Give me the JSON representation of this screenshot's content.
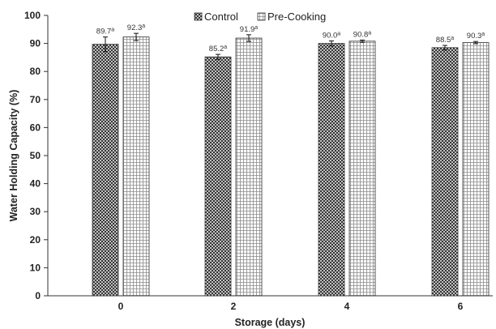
{
  "chart_data": {
    "type": "bar",
    "title": "",
    "xlabel": "Storage (days)",
    "ylabel": "Water Holding Capacity (%)",
    "ylim": [
      0,
      100
    ],
    "yticks": [
      "0",
      "10",
      "20",
      "30",
      "40",
      "50",
      "60",
      "70",
      "80",
      "90",
      "100"
    ],
    "categories": [
      "0",
      "2",
      "4",
      "6"
    ],
    "legend_position": "top-center",
    "grid": false,
    "series": [
      {
        "name": "Control",
        "pattern": "crosshatch-dark",
        "color": "#333333",
        "values": [
          89.7,
          85.2,
          90.0,
          88.5
        ],
        "errors": [
          2.6,
          0.9,
          0.9,
          0.8
        ],
        "labels": [
          "89.7",
          "85.2",
          "90.0",
          "88.5"
        ],
        "superscripts": [
          "a",
          "a",
          "a",
          "a"
        ]
      },
      {
        "name": "Pre-Cooking",
        "pattern": "grid-light",
        "color": "#888888",
        "values": [
          92.3,
          91.9,
          90.8,
          90.3
        ],
        "errors": [
          1.3,
          1.2,
          0.4,
          0.4
        ],
        "labels": [
          "92.3",
          "91.9",
          "90.8",
          "90.3"
        ],
        "superscripts": [
          "a",
          "a",
          "a",
          "a"
        ]
      }
    ]
  }
}
